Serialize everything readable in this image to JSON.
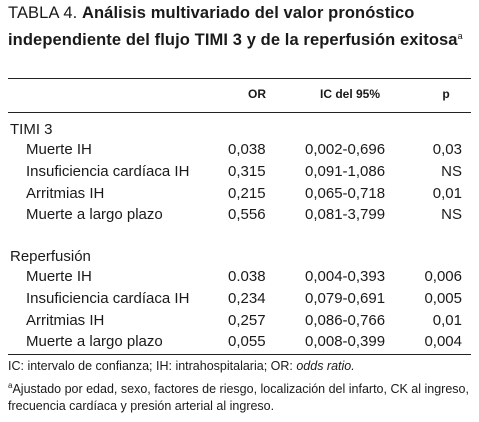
{
  "table": {
    "label": "TABLA 4.",
    "title": "Análisis multivariado del valor pronóstico independiente del flujo TIMI 3 y de la reperfusión exitosa",
    "title_sup": "a",
    "headers": {
      "or": "OR",
      "ic": "IC del 95%",
      "p": "p"
    },
    "groups": [
      {
        "label": "TIMI 3",
        "rows": [
          {
            "name": "Muerte IH",
            "or": "0,038",
            "ic": "0,002-0,696",
            "p": "0,03"
          },
          {
            "name": "Insuficiencia cardíaca IH",
            "or": "0,315",
            "ic": "0,091-1,086",
            "p": "NS"
          },
          {
            "name": "Arritmias IH",
            "or": "0,215",
            "ic": "0,065-0,718",
            "p": "0,01"
          },
          {
            "name": "Muerte a largo plazo",
            "or": "0,556",
            "ic": "0,081-3,799",
            "p": "NS"
          }
        ]
      },
      {
        "label": "Reperfusión",
        "rows": [
          {
            "name": "Muerte IH",
            "or": "0.038",
            "ic": "0,004-0,393",
            "p": "0,006"
          },
          {
            "name": "Insuficiencia cardíaca IH",
            "or": "0,234",
            "ic": "0,079-0,691",
            "p": "0,005"
          },
          {
            "name": "Arritmias IH",
            "or": "0,257",
            "ic": "0,086-0,766",
            "p": "0,01"
          },
          {
            "name": "Muerte a largo plazo",
            "or": "0,055",
            "ic": "0,008-0,399",
            "p": "0,004"
          }
        ]
      }
    ],
    "footnotes": {
      "abbrev_text": "IC: intervalo de confianza; IH: intrahospitalaria; OR: ",
      "abbrev_italic": "odds ratio.",
      "note_sup": "a",
      "note_text": "Ajustado por edad, sexo, factores de riesgo, localización del infarto, CK al ingreso, frecuencia cardíaca y presión arterial al ingreso."
    }
  }
}
